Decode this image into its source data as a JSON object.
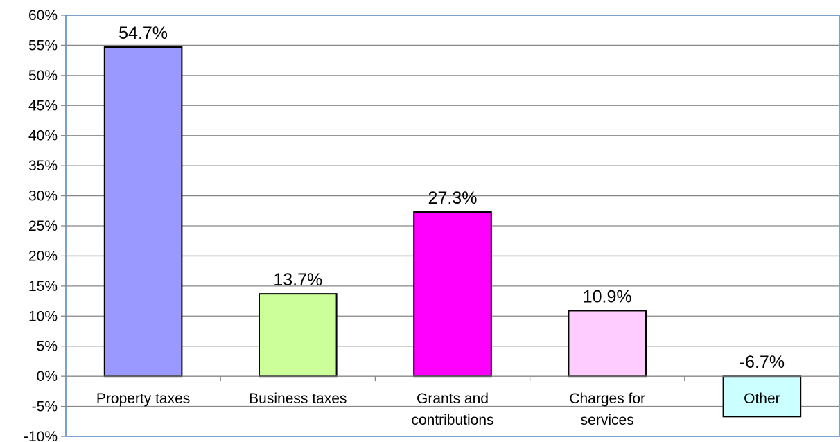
{
  "chart_data": {
    "type": "bar",
    "categories": [
      [
        "Property taxes"
      ],
      [
        "Business taxes"
      ],
      [
        "Grants and",
        "contributions"
      ],
      [
        "Charges for",
        "services"
      ],
      [
        "Other"
      ]
    ],
    "values": [
      54.7,
      13.7,
      27.3,
      10.9,
      -6.7
    ],
    "data_labels": [
      "54.7%",
      "13.7%",
      "27.3%",
      "10.9%",
      "-6.7%"
    ],
    "bar_colors": [
      "#9999ff",
      "#ccff99",
      "#ff00ff",
      "#ffccff",
      "#ccffff"
    ],
    "ylim": [
      -10,
      60
    ],
    "ytick_step": 5,
    "ytick_format": "percent",
    "grid": true,
    "title": "",
    "xlabel": "",
    "ylabel": ""
  }
}
